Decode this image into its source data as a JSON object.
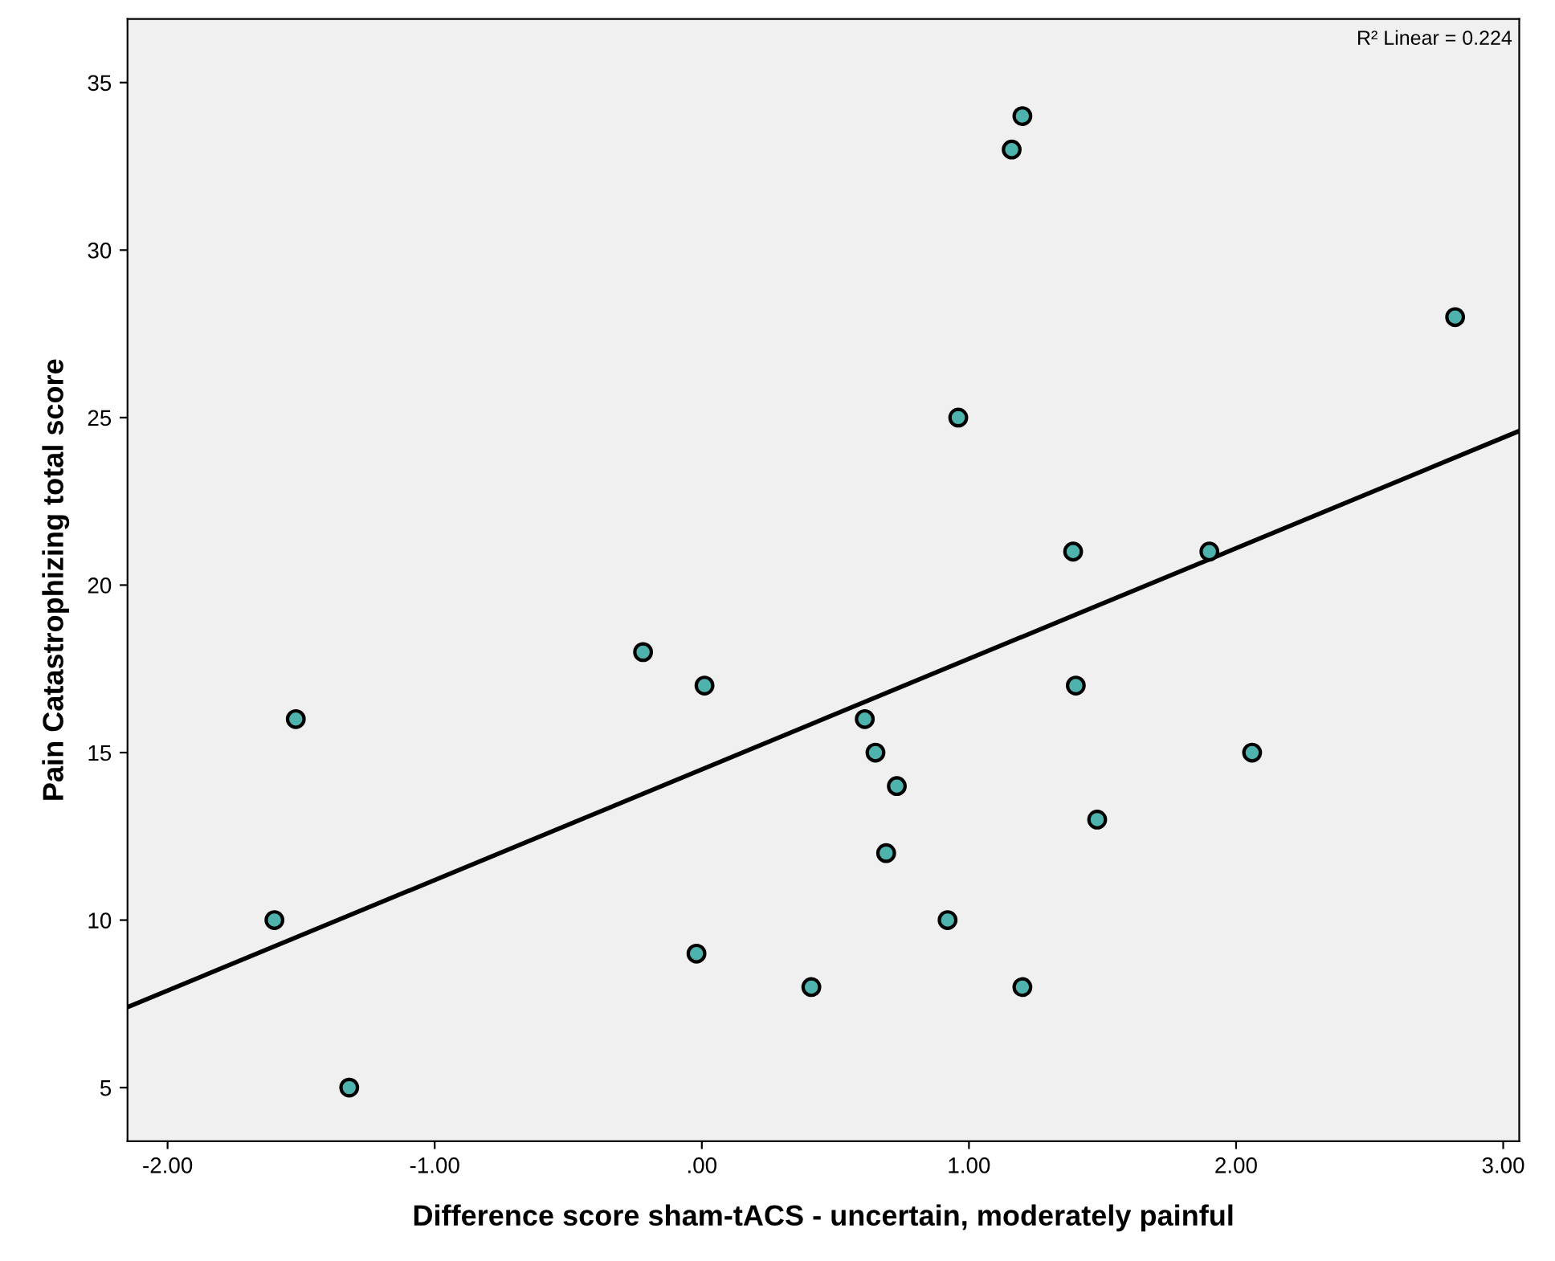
{
  "chart_data": {
    "type": "scatter",
    "xlabel": "Difference score sham-tACS - uncertain, moderately painful",
    "ylabel": "Pain Catastrophizing total score",
    "xlim": [
      -2.15,
      3.06
    ],
    "ylim": [
      3.4,
      36.9
    ],
    "xticks": [
      {
        "value": -2,
        "label": "-2.00"
      },
      {
        "value": -1,
        "label": "-1.00"
      },
      {
        "value": 0,
        "label": ".00"
      },
      {
        "value": 1,
        "label": "1.00"
      },
      {
        "value": 2,
        "label": "2.00"
      },
      {
        "value": 3,
        "label": "3.00"
      }
    ],
    "yticks": [
      5,
      10,
      15,
      20,
      25,
      30,
      35
    ],
    "grid": false,
    "annotations": [
      "R² Linear = 0.224"
    ],
    "series": [
      {
        "marker": "circle",
        "color": "#4fb3ad",
        "x": [
          1.2,
          1.16,
          2.82,
          0.96,
          1.39,
          1.9,
          -0.22,
          0.01,
          1.4,
          -1.52,
          0.61,
          0.65,
          2.06,
          0.73,
          1.48,
          0.69,
          -1.6,
          0.92,
          -0.02,
          0.41,
          1.2,
          -1.32
        ],
        "values": [
          34,
          33,
          28,
          25,
          21,
          21,
          18,
          17,
          17,
          16,
          16,
          15,
          15,
          14,
          13,
          12,
          10,
          10,
          9,
          8,
          8,
          5
        ]
      },
      {
        "type": "line",
        "color": "#000000",
        "x": [
          -2.15,
          3.06
        ],
        "values": [
          7.4,
          24.6
        ]
      }
    ]
  }
}
